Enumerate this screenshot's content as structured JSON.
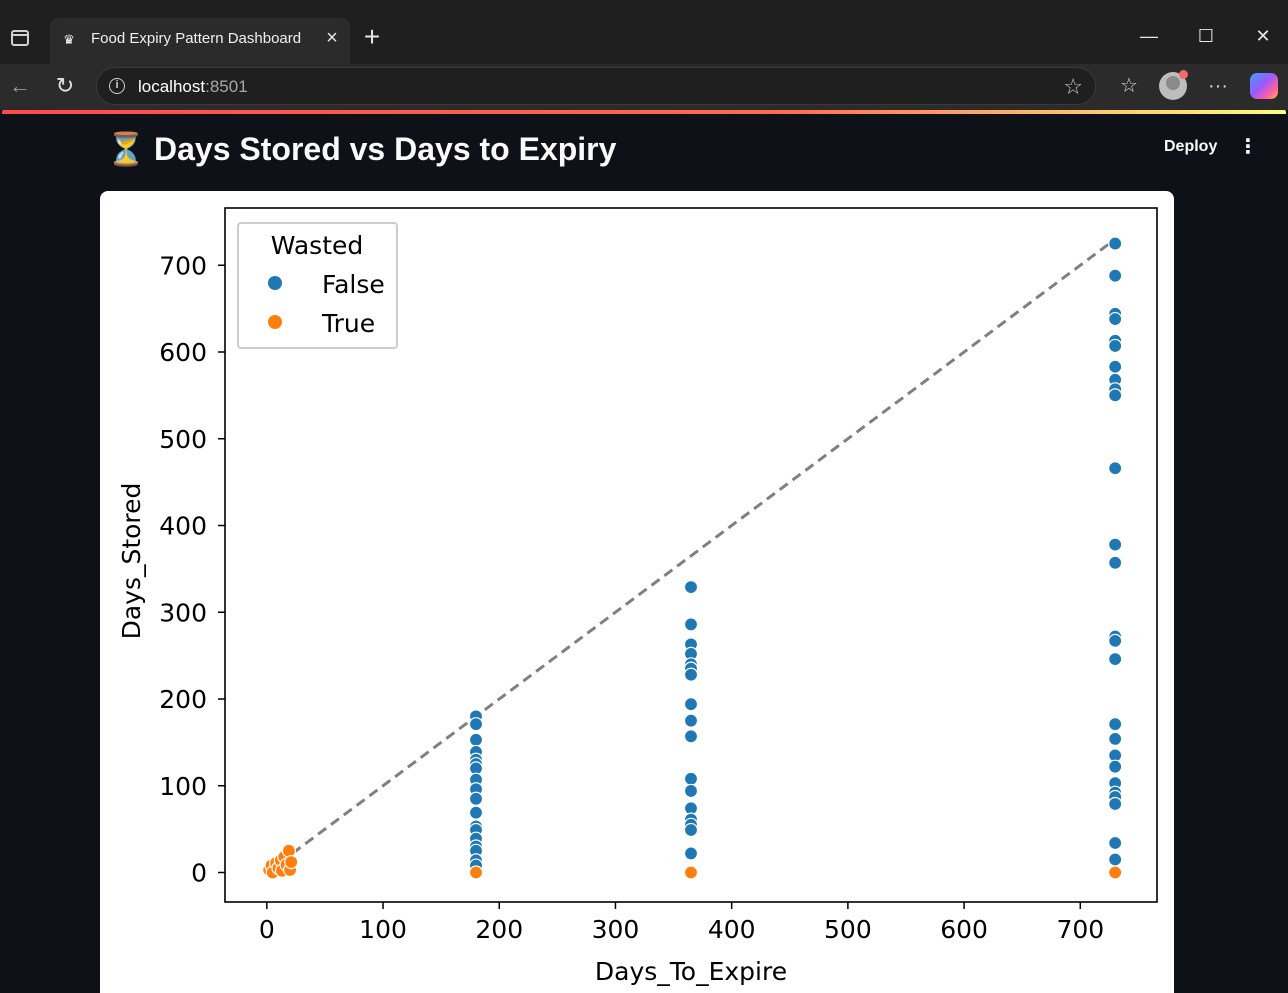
{
  "browser": {
    "tab_title": "Food Expiry Pattern Dashboard",
    "tab_close": "×",
    "new_tab": "+",
    "url_host": "localhost",
    "url_port": ":8501",
    "minimize": "—",
    "maximize": "☐",
    "close": "✕",
    "more": "···"
  },
  "app": {
    "page_title": "Days Stored vs Days to Expiry",
    "title_icon": "⏳",
    "deploy_label": "Deploy",
    "menu_label": "⋮"
  },
  "colors": {
    "false": "#1f77b4",
    "true": "#ff7f0e",
    "line": "#808080"
  },
  "chart_data": {
    "type": "scatter",
    "title": "",
    "xlabel": "Days_To_Expire",
    "ylabel": "Days_Stored",
    "xlim": [
      -36,
      766
    ],
    "ylim": [
      -34,
      766
    ],
    "xticks": [
      0,
      100,
      200,
      300,
      400,
      500,
      600,
      700
    ],
    "yticks": [
      0,
      100,
      200,
      300,
      400,
      500,
      600,
      700
    ],
    "legend": {
      "title": "Wasted",
      "entries": [
        "False",
        "True"
      ],
      "location": "upper-left"
    },
    "reference_line": {
      "style": "dashed",
      "x": [
        0,
        730
      ],
      "y": [
        0,
        730
      ]
    },
    "series": [
      {
        "name": "False",
        "points": [
          [
            3,
            4
          ],
          [
            5,
            2
          ],
          [
            7,
            6
          ],
          [
            12,
            3
          ],
          [
            14,
            8
          ],
          [
            18,
            10
          ],
          [
            20,
            6
          ],
          [
            180,
            180
          ],
          [
            180,
            171
          ],
          [
            180,
            153
          ],
          [
            180,
            139
          ],
          [
            180,
            130
          ],
          [
            180,
            125
          ],
          [
            180,
            120
          ],
          [
            180,
            107
          ],
          [
            180,
            96
          ],
          [
            180,
            85
          ],
          [
            180,
            69
          ],
          [
            180,
            53
          ],
          [
            180,
            49
          ],
          [
            180,
            39
          ],
          [
            180,
            30
          ],
          [
            180,
            25
          ],
          [
            180,
            14
          ],
          [
            180,
            8
          ],
          [
            365,
            329
          ],
          [
            365,
            286
          ],
          [
            365,
            263
          ],
          [
            365,
            252
          ],
          [
            365,
            240
          ],
          [
            365,
            235
          ],
          [
            365,
            228
          ],
          [
            365,
            194
          ],
          [
            365,
            175
          ],
          [
            365,
            157
          ],
          [
            365,
            108
          ],
          [
            365,
            94
          ],
          [
            365,
            74
          ],
          [
            365,
            61
          ],
          [
            365,
            55
          ],
          [
            365,
            49
          ],
          [
            365,
            22
          ],
          [
            730,
            725
          ],
          [
            730,
            688
          ],
          [
            730,
            644
          ],
          [
            730,
            638
          ],
          [
            730,
            613
          ],
          [
            730,
            607
          ],
          [
            730,
            583
          ],
          [
            730,
            568
          ],
          [
            730,
            557
          ],
          [
            730,
            550
          ],
          [
            730,
            466
          ],
          [
            730,
            378
          ],
          [
            730,
            357
          ],
          [
            730,
            272
          ],
          [
            730,
            267
          ],
          [
            730,
            246
          ],
          [
            730,
            171
          ],
          [
            730,
            154
          ],
          [
            730,
            135
          ],
          [
            730,
            122
          ],
          [
            730,
            103
          ],
          [
            730,
            92
          ],
          [
            730,
            87
          ],
          [
            730,
            79
          ],
          [
            730,
            34
          ],
          [
            730,
            15
          ]
        ]
      },
      {
        "name": "True",
        "points": [
          [
            2,
            3
          ],
          [
            4,
            8
          ],
          [
            5,
            0
          ],
          [
            8,
            11
          ],
          [
            10,
            5
          ],
          [
            12,
            14
          ],
          [
            13,
            2
          ],
          [
            15,
            18
          ],
          [
            17,
            9
          ],
          [
            19,
            25
          ],
          [
            20,
            3
          ],
          [
            21,
            12
          ],
          [
            180,
            0
          ],
          [
            365,
            0
          ],
          [
            730,
            0
          ]
        ]
      }
    ]
  }
}
